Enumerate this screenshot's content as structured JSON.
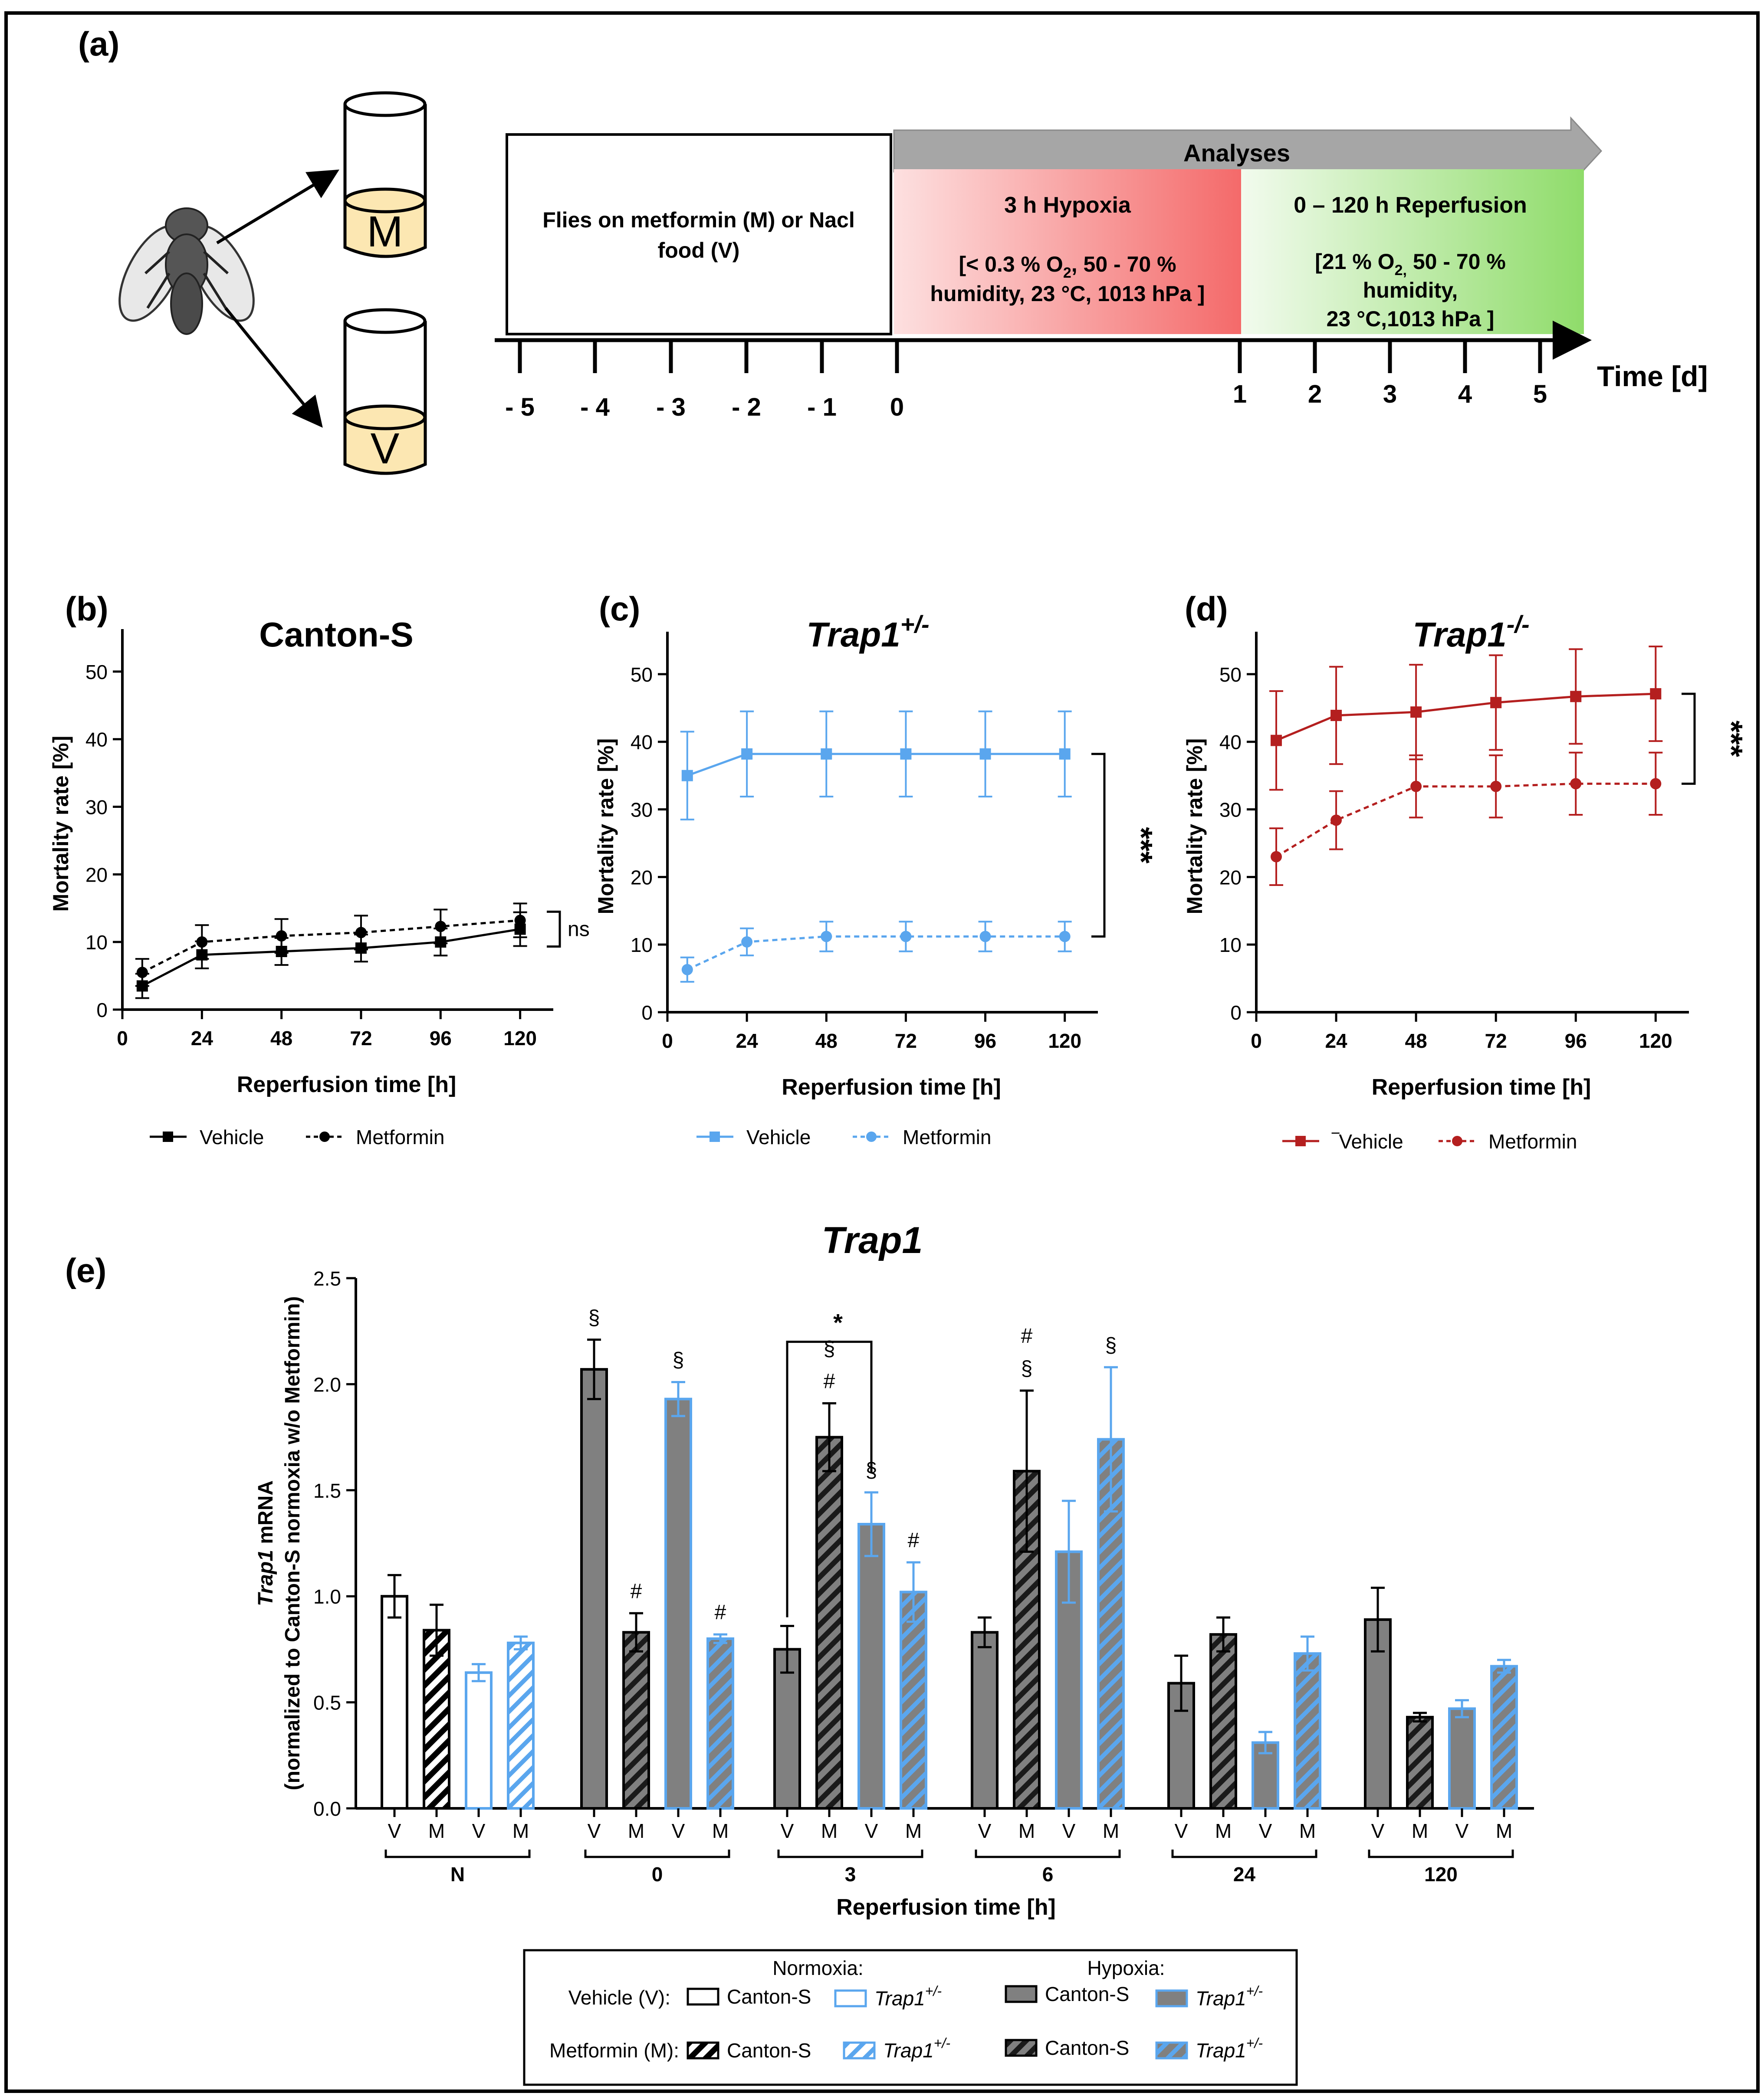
{
  "panel_a": {
    "label": "(a)",
    "vial_m": "M",
    "vial_v": "V",
    "pre_box": {
      "line1": "Flies on metformin (M) or Nacl",
      "line2": "food (V)"
    },
    "analyses_label": "Analyses",
    "hypoxia": {
      "title": "3 h Hypoxia",
      "l1_pre": "[< 0.3 % O",
      "l1_sub": "2",
      "l1_post": ", 50 - 70 %",
      "l2": "humidity, 23 °C, 1013 hPa ]"
    },
    "reperfusion": {
      "title": "0 – 120 h Reperfusion",
      "l1_pre": "[21 % O",
      "l1_sub": "2,",
      "l1_post": " 50 - 70 %",
      "l2": "humidity,",
      "l3": "23 °C,1013 hPa ]"
    },
    "ticks": [
      "- 5",
      "- 4",
      "- 3",
      "- 2",
      "- 1",
      "0",
      "1",
      "2",
      "3",
      "4",
      "5"
    ],
    "time_label": "Time [d]",
    "colors": {
      "hypoxia": "#f46a6a",
      "reperfusion": "#8fdc6a",
      "arrow": "#a6a6a6"
    }
  },
  "chart_data": [
    {
      "type": "line",
      "panel": "(b)",
      "title": "Canton-S",
      "xlabel": "Reperfusion time [h]",
      "ylabel": "Mortality rate [%]",
      "xlim": [
        0,
        130
      ],
      "ylim": [
        0,
        55
      ],
      "xticks": [
        0,
        24,
        48,
        72,
        96,
        120
      ],
      "yticks": [
        0,
        10,
        20,
        30,
        40,
        50
      ],
      "x": [
        6,
        24,
        48,
        72,
        96,
        120
      ],
      "color": "#000000",
      "series": [
        {
          "name": "Vehicle",
          "values": [
            3.5,
            8.1,
            8.6,
            9.1,
            10.0,
            11.9
          ],
          "err": [
            1.8,
            2.0,
            2.0,
            2.0,
            2.0,
            2.5
          ],
          "dashed": false,
          "marker": "square"
        },
        {
          "name": "Metformin",
          "values": [
            5.5,
            10.0,
            10.9,
            11.4,
            12.3,
            13.2
          ],
          "err": [
            2.0,
            2.5,
            2.5,
            2.5,
            2.5,
            2.5
          ],
          "dashed": true,
          "marker": "circle"
        }
      ],
      "significance": "ns"
    },
    {
      "type": "line",
      "panel": "(c)",
      "title": "Trap1",
      "title_sup": "+/-",
      "xlabel": "Reperfusion time [h]",
      "ylabel": "Mortality rate [%]",
      "xlim": [
        0,
        130
      ],
      "ylim": [
        0,
        55
      ],
      "xticks": [
        0,
        24,
        48,
        72,
        96,
        120
      ],
      "yticks": [
        0,
        10,
        20,
        30,
        40,
        50
      ],
      "x": [
        6,
        24,
        48,
        72,
        96,
        120
      ],
      "color": "#5aa6ee",
      "series": [
        {
          "name": "Vehicle",
          "values": [
            35.0,
            38.2,
            38.2,
            38.2,
            38.2,
            38.2
          ],
          "err": [
            6.5,
            6.3,
            6.3,
            6.3,
            6.3,
            6.3
          ],
          "dashed": false,
          "marker": "square"
        },
        {
          "name": "Metformin",
          "values": [
            6.3,
            10.4,
            11.2,
            11.2,
            11.2,
            11.2
          ],
          "err": [
            1.8,
            2.0,
            2.2,
            2.2,
            2.2,
            2.2
          ],
          "dashed": true,
          "marker": "circle"
        }
      ],
      "significance": "***"
    },
    {
      "type": "line",
      "panel": "(d)",
      "title": "Trap1",
      "title_sup": "-/-",
      "xlabel": "Reperfusion time [h]",
      "ylabel": "Mortality rate [%]",
      "xlim": [
        0,
        130
      ],
      "ylim": [
        0,
        55
      ],
      "xticks": [
        0,
        24,
        48,
        72,
        96,
        120
      ],
      "yticks": [
        0,
        10,
        20,
        30,
        40,
        50
      ],
      "x": [
        6,
        24,
        48,
        72,
        96,
        120
      ],
      "color": "#b41f1f",
      "series": [
        {
          "name": "‾Vehicle",
          "values": [
            40.2,
            43.9,
            44.4,
            45.8,
            46.7,
            47.1
          ],
          "err": [
            7.3,
            7.2,
            7.0,
            7.0,
            7.0,
            7.0
          ],
          "dashed": false,
          "marker": "square"
        },
        {
          "name": "Metformin",
          "values": [
            23.0,
            28.4,
            33.4,
            33.4,
            33.8,
            33.8
          ],
          "err": [
            4.2,
            4.3,
            4.6,
            4.6,
            4.6,
            4.6
          ],
          "dashed": true,
          "marker": "circle"
        }
      ],
      "significance": "***"
    },
    {
      "type": "bar",
      "panel": "(e)",
      "title": "Trap1",
      "ylabel_l1_it": "Trap1",
      "ylabel_l1": " mRNA",
      "ylabel_l2": "(normalized to Canton-S normoxia w/o Metformin)",
      "xlabel": "Reperfusion time [h]",
      "ylim": [
        0,
        2.5
      ],
      "yticks": [
        "0.0",
        "0.5",
        "1.0",
        "1.5",
        "2.0",
        "2.5"
      ],
      "groups": [
        "N",
        "0",
        "3",
        "6",
        "24",
        "120"
      ],
      "bar_labels": [
        "V",
        "M",
        "V",
        "M"
      ],
      "strains": [
        "Canton-S",
        "Trap1+/-",
        "Canton-S",
        "Trap1+/-"
      ],
      "values": [
        [
          1.0,
          0.84,
          0.64,
          0.78
        ],
        [
          2.07,
          0.83,
          1.93,
          0.8
        ],
        [
          0.75,
          1.75,
          1.34,
          1.02
        ],
        [
          0.83,
          1.59,
          1.21,
          1.74
        ],
        [
          0.59,
          0.82,
          0.31,
          0.73
        ],
        [
          0.89,
          0.43,
          0.47,
          0.67
        ]
      ],
      "errors": [
        [
          0.1,
          0.12,
          0.04,
          0.03
        ],
        [
          0.14,
          0.09,
          0.08,
          0.02
        ],
        [
          0.11,
          0.16,
          0.15,
          0.14
        ],
        [
          0.07,
          0.38,
          0.24,
          0.34
        ],
        [
          0.13,
          0.08,
          0.05,
          0.08
        ],
        [
          0.15,
          0.02,
          0.04,
          0.03
        ]
      ],
      "annotations": [
        [
          [],
          [],
          [],
          []
        ],
        [
          [
            "§"
          ],
          [
            "#"
          ],
          [
            "§"
          ],
          [
            "#"
          ]
        ],
        [
          [],
          [
            "§",
            "#"
          ],
          [
            "§"
          ],
          [
            "#"
          ]
        ],
        [
          [],
          [
            "#",
            "§"
          ],
          [],
          [
            "§"
          ]
        ],
        [
          [],
          [],
          [],
          []
        ],
        [
          [],
          [],
          [],
          []
        ]
      ],
      "bracket": {
        "group": "3",
        "from": 0,
        "to": 2,
        "label": "*"
      },
      "colors": {
        "hypoxia_fill": "#808080",
        "blue": "#5aa6ee",
        "black": "#000000"
      }
    }
  ],
  "legend_bc": {
    "vehicle": "Vehicle",
    "metformin": "Metformin"
  },
  "legend_e": {
    "normoxia": "Normoxia:",
    "hypoxia": "Hypoxia:",
    "vehicle_row": "Vehicle (V):",
    "metformin_row": "Metformin (M):",
    "canton": "Canton-S",
    "trap": "Trap1",
    "trap_sup": "+/-"
  }
}
